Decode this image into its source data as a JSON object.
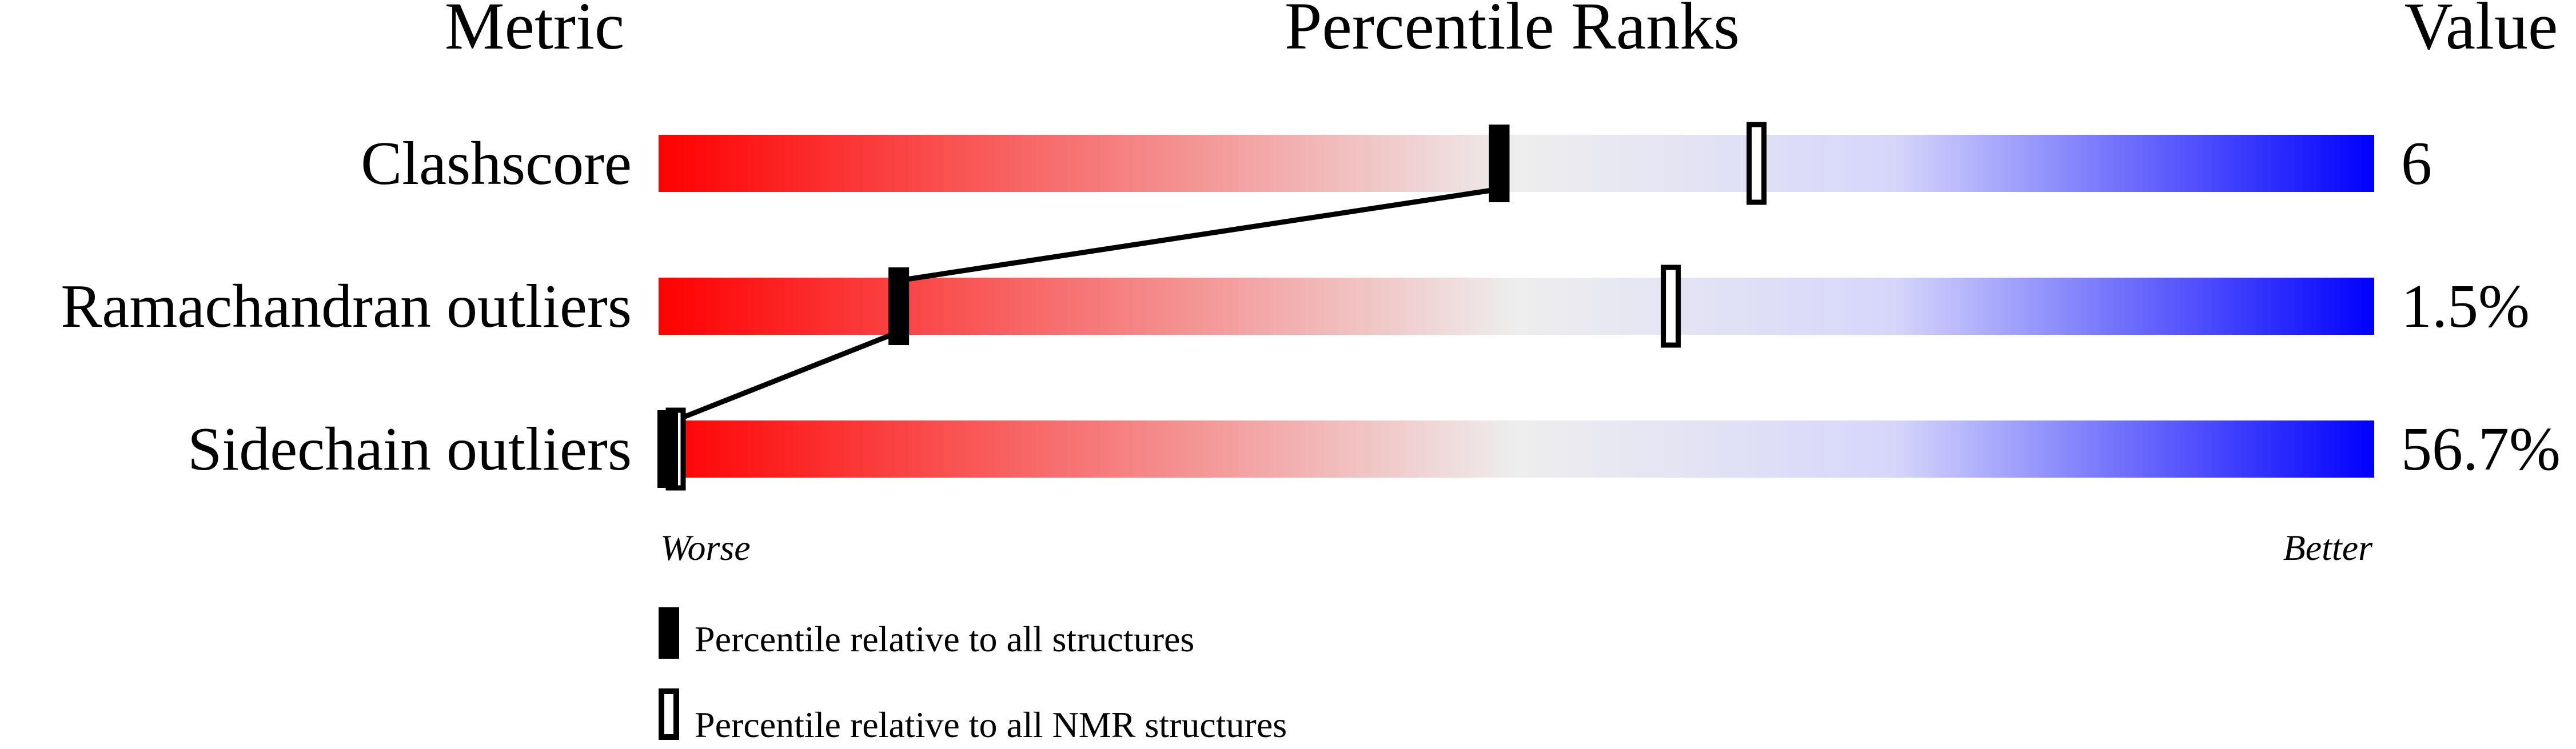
{
  "chart_data": {
    "type": "percentile-slider",
    "headers": {
      "metric": "Metric",
      "ranks": "Percentile Ranks",
      "value": "Value"
    },
    "xlim": [
      0,
      100
    ],
    "rows": [
      {
        "metric": "Clashscore",
        "value": "6",
        "percentile_all": 49,
        "percentile_nmr": 64
      },
      {
        "metric": "Ramachandran outliers",
        "value": "1.5%",
        "percentile_all": 14,
        "percentile_nmr": 59
      },
      {
        "metric": "Sidechain outliers",
        "value": "56.7%",
        "percentile_all": 0,
        "percentile_nmr": 1
      }
    ],
    "axis": {
      "worse": "Worse",
      "better": "Better"
    },
    "legend": {
      "all": "Percentile relative to all structures",
      "nmr": "Percentile relative to all NMR structures"
    },
    "colors": {
      "worse": "#ff0000",
      "middle": "#eeeeee",
      "better": "#0000ff"
    }
  }
}
